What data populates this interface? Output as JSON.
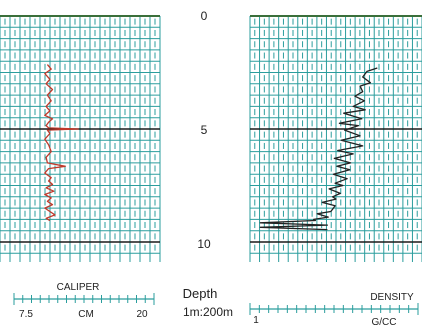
{
  "chart_data": [
    {
      "type": "line",
      "name_on_chart": "CALIPER",
      "unit": "CM",
      "scale_min_label": "7.5",
      "scale_max_label": "20",
      "xlim": [
        7.5,
        20
      ],
      "ylim": [
        0,
        10
      ],
      "y_reversed": true,
      "grid": true,
      "color": "#c0392b",
      "series": [
        {
          "x": [
            11.2,
            11.5,
            11.0,
            11.4,
            11.1,
            11.6,
            11.2,
            11.5,
            11.1,
            11.4,
            11.0,
            11.6,
            11.3,
            11.1,
            11.3,
            13.6,
            11.2,
            11.4,
            11.0,
            11.3,
            11.5,
            11.1,
            11.2,
            12.6,
            11.3,
            11.0,
            11.5,
            11.3,
            11.6,
            11.1,
            11.7,
            11.0,
            11.5,
            11.2,
            11.6,
            11.0,
            11.4,
            11.8,
            11.1,
            11.4
          ],
          "y": [
            2.15,
            2.35,
            2.55,
            2.8,
            3.0,
            3.25,
            3.5,
            3.75,
            4.0,
            4.2,
            4.4,
            4.55,
            4.7,
            4.85,
            4.95,
            5.0,
            5.05,
            5.2,
            5.45,
            5.7,
            6.0,
            6.25,
            6.5,
            6.65,
            6.75,
            6.95,
            7.15,
            7.3,
            7.45,
            7.6,
            7.75,
            7.9,
            8.05,
            8.2,
            8.35,
            8.5,
            8.65,
            8.8,
            8.95,
            9.05
          ]
        }
      ]
    },
    {
      "type": "line",
      "name_on_chart": "DENSITY",
      "unit": "G/CC",
      "scale_min_label": "1",
      "xlim": [
        1,
        3
      ],
      "ylim": [
        0,
        10
      ],
      "y_reversed": true,
      "grid": true,
      "color": "#222222",
      "series": [
        {
          "x": [
            2.48,
            2.36,
            2.31,
            2.4,
            2.28,
            2.31,
            2.22,
            2.33,
            2.2,
            2.34,
            2.09,
            2.3,
            2.04,
            2.26,
            2.1,
            2.28,
            2.06,
            2.31,
            2.02,
            2.2,
            1.98,
            2.17,
            2.01,
            2.16,
            1.97,
            2.13,
            1.99,
            2.08,
            1.92,
            2.05,
            1.96,
            2.0,
            1.84,
            1.99,
            1.96,
            1.94,
            1.78,
            1.91,
            1.74,
            1.76,
            1.12,
            1.9,
            1.12,
            1.9
          ],
          "y": [
            2.3,
            2.45,
            2.7,
            2.95,
            3.1,
            3.35,
            3.55,
            3.75,
            4.0,
            4.15,
            4.3,
            4.55,
            4.75,
            4.85,
            5.05,
            5.3,
            5.5,
            5.75,
            5.95,
            6.1,
            6.3,
            6.5,
            6.65,
            6.8,
            7.0,
            7.2,
            7.4,
            7.5,
            7.65,
            7.85,
            8.0,
            8.1,
            8.25,
            8.4,
            8.55,
            8.65,
            8.75,
            8.9,
            9.0,
            9.05,
            9.15,
            9.25,
            9.35,
            9.45
          ]
        }
      ]
    }
  ],
  "depth_track": {
    "ticks": [
      "0",
      "5",
      "10"
    ],
    "tick_values": [
      0,
      5,
      10
    ],
    "label": "Depth",
    "scale_label": "1m:200m"
  }
}
